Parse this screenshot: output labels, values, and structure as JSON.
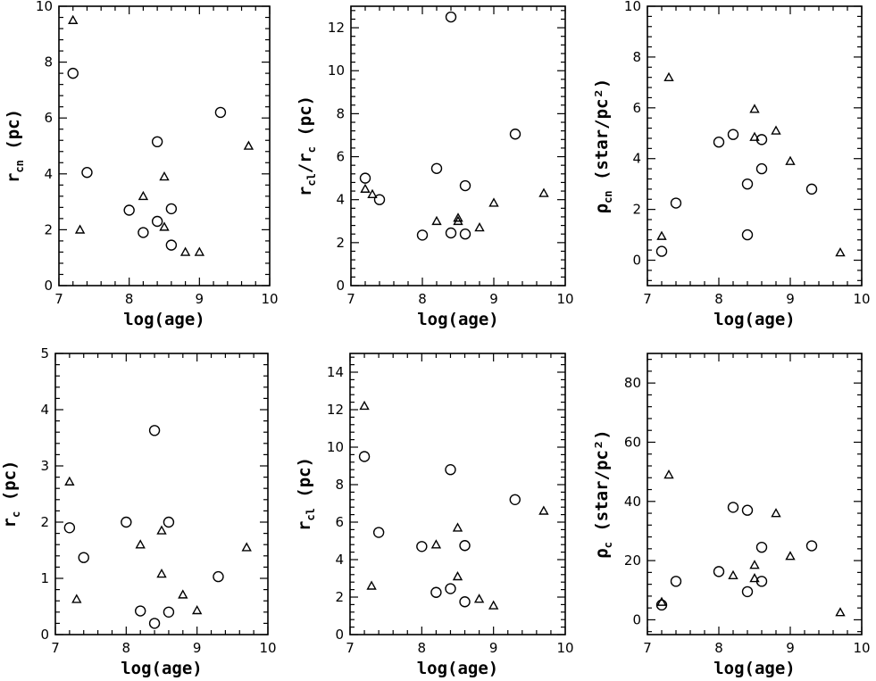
{
  "chart_data": [
    {
      "type": "scatter",
      "xlabel": "log(age)",
      "ylabel": "r_cn (pc)",
      "xlim": [
        7,
        10
      ],
      "ylim": [
        0,
        10
      ],
      "xticks": [
        7,
        8,
        9,
        10
      ],
      "yticks": [
        0,
        2,
        4,
        6,
        8,
        10
      ],
      "series": [
        {
          "marker": "circle",
          "points": [
            [
              7.2,
              7.6
            ],
            [
              7.4,
              4.05
            ],
            [
              8.0,
              2.7
            ],
            [
              8.2,
              1.9
            ],
            [
              8.4,
              5.15
            ],
            [
              8.4,
              2.3
            ],
            [
              8.6,
              2.75
            ],
            [
              8.6,
              1.45
            ],
            [
              9.3,
              6.2
            ]
          ]
        },
        {
          "marker": "triangle",
          "points": [
            [
              7.2,
              9.5
            ],
            [
              7.3,
              2.0
            ],
            [
              8.2,
              3.2
            ],
            [
              8.5,
              3.9
            ],
            [
              8.5,
              2.1
            ],
            [
              8.8,
              1.2
            ],
            [
              9.0,
              1.2
            ],
            [
              9.7,
              5.0
            ]
          ]
        }
      ]
    },
    {
      "type": "scatter",
      "xlabel": "log(age)",
      "ylabel": "r_cl/r_c (pc)",
      "xlim": [
        7,
        10
      ],
      "ylim": [
        0,
        13
      ],
      "xticks": [
        7,
        8,
        9,
        10
      ],
      "yticks": [
        0,
        2,
        4,
        6,
        8,
        10,
        12
      ],
      "series": [
        {
          "marker": "circle",
          "points": [
            [
              7.2,
              5.0
            ],
            [
              7.4,
              4.0
            ],
            [
              8.0,
              2.35
            ],
            [
              8.2,
              5.45
            ],
            [
              8.4,
              12.5
            ],
            [
              8.4,
              2.45
            ],
            [
              8.6,
              4.65
            ],
            [
              8.6,
              2.4
            ],
            [
              9.3,
              7.05
            ]
          ]
        },
        {
          "marker": "triangle",
          "points": [
            [
              7.2,
              4.5
            ],
            [
              7.3,
              4.25
            ],
            [
              8.2,
              3.0
            ],
            [
              8.5,
              3.0
            ],
            [
              8.5,
              3.15
            ],
            [
              8.8,
              2.7
            ],
            [
              9.0,
              3.85
            ],
            [
              9.7,
              4.3
            ]
          ]
        }
      ]
    },
    {
      "type": "scatter",
      "xlabel": "log(age)",
      "ylabel": "ρ_cn (star/pc²)",
      "xlim": [
        7,
        10
      ],
      "ylim": [
        -1,
        10
      ],
      "xticks": [
        7,
        8,
        9,
        10
      ],
      "yticks": [
        0,
        2,
        4,
        6,
        8,
        10
      ],
      "series": [
        {
          "marker": "circle",
          "points": [
            [
              7.2,
              0.35
            ],
            [
              7.4,
              2.25
            ],
            [
              8.0,
              4.65
            ],
            [
              8.2,
              4.95
            ],
            [
              8.4,
              3.0
            ],
            [
              8.4,
              1.0
            ],
            [
              8.6,
              4.75
            ],
            [
              8.6,
              3.6
            ],
            [
              9.3,
              2.8
            ]
          ]
        },
        {
          "marker": "triangle",
          "points": [
            [
              7.2,
              0.95
            ],
            [
              7.3,
              7.2
            ],
            [
              8.5,
              5.95
            ],
            [
              8.5,
              4.85
            ],
            [
              8.8,
              5.1
            ],
            [
              9.0,
              3.9
            ],
            [
              9.7,
              0.3
            ]
          ]
        }
      ]
    },
    {
      "type": "scatter",
      "xlabel": "log(age)",
      "ylabel": "r_c (pc)",
      "xlim": [
        7,
        10
      ],
      "ylim": [
        0,
        5
      ],
      "xticks": [
        7,
        8,
        9,
        10
      ],
      "yticks": [
        0,
        1,
        2,
        3,
        4,
        5
      ],
      "series": [
        {
          "marker": "circle",
          "points": [
            [
              7.2,
              1.9
            ],
            [
              7.4,
              1.37
            ],
            [
              8.0,
              2.0
            ],
            [
              8.2,
              0.42
            ],
            [
              8.4,
              3.63
            ],
            [
              8.4,
              0.2
            ],
            [
              8.6,
              2.0
            ],
            [
              8.6,
              0.4
            ],
            [
              9.3,
              1.03
            ]
          ]
        },
        {
          "marker": "triangle",
          "points": [
            [
              7.2,
              2.72
            ],
            [
              7.3,
              0.63
            ],
            [
              8.2,
              1.6
            ],
            [
              8.5,
              1.85
            ],
            [
              8.5,
              1.08
            ],
            [
              8.8,
              0.71
            ],
            [
              9.0,
              0.43
            ],
            [
              9.7,
              1.55
            ]
          ]
        }
      ]
    },
    {
      "type": "scatter",
      "xlabel": "log(age)",
      "ylabel": "r_cl (pc)",
      "xlim": [
        7,
        10
      ],
      "ylim": [
        0,
        15
      ],
      "xticks": [
        7,
        8,
        9,
        10
      ],
      "yticks": [
        0,
        2,
        4,
        6,
        8,
        10,
        12,
        14
      ],
      "series": [
        {
          "marker": "circle",
          "points": [
            [
              7.2,
              9.5
            ],
            [
              7.4,
              5.45
            ],
            [
              8.0,
              4.7
            ],
            [
              8.2,
              2.25
            ],
            [
              8.4,
              8.8
            ],
            [
              8.4,
              2.45
            ],
            [
              8.6,
              4.75
            ],
            [
              8.6,
              1.75
            ],
            [
              9.3,
              7.2
            ]
          ]
        },
        {
          "marker": "triangle",
          "points": [
            [
              7.2,
              12.2
            ],
            [
              7.3,
              2.6
            ],
            [
              8.2,
              4.8
            ],
            [
              8.5,
              5.7
            ],
            [
              8.5,
              3.1
            ],
            [
              8.8,
              1.9
            ],
            [
              9.0,
              1.55
            ],
            [
              9.7,
              6.6
            ]
          ]
        }
      ]
    },
    {
      "type": "scatter",
      "xlabel": "log(age)",
      "ylabel": "ρ_c (star/pc²)",
      "xlim": [
        7,
        10
      ],
      "ylim": [
        -5,
        90
      ],
      "xticks": [
        7,
        8,
        9,
        10
      ],
      "yticks": [
        0,
        20,
        40,
        60,
        80
      ],
      "series": [
        {
          "marker": "circle",
          "points": [
            [
              7.2,
              5.0
            ],
            [
              7.4,
              13.0
            ],
            [
              8.0,
              16.3
            ],
            [
              8.2,
              38.0
            ],
            [
              8.4,
              37.0
            ],
            [
              8.4,
              9.5
            ],
            [
              8.6,
              24.5
            ],
            [
              8.6,
              13.0
            ],
            [
              9.3,
              25.0
            ]
          ]
        },
        {
          "marker": "triangle",
          "points": [
            [
              7.2,
              6.0
            ],
            [
              7.3,
              49.0
            ],
            [
              8.2,
              15.0
            ],
            [
              8.5,
              18.5
            ],
            [
              8.5,
              14.0
            ],
            [
              8.8,
              36.0
            ],
            [
              9.0,
              21.5
            ],
            [
              9.7,
              2.5
            ]
          ]
        }
      ]
    }
  ]
}
